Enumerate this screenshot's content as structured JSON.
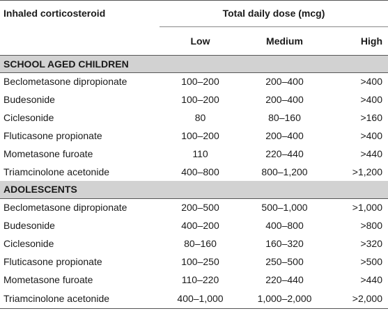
{
  "header": {
    "corticosteroid_label": "Inhaled corticosteroid",
    "total_label": "Total daily dose (mcg)",
    "low_label": "Low",
    "medium_label": "Medium",
    "high_label": "High"
  },
  "sections": [
    {
      "title": "SCHOOL AGED CHILDREN",
      "rows": [
        {
          "drug": "Beclometasone dipropionate",
          "low": "100–200",
          "medium": "200–400",
          "high": ">400"
        },
        {
          "drug": "Budesonide",
          "low": "100–200",
          "medium": "200–400",
          "high": ">400"
        },
        {
          "drug": "Ciclesonide",
          "low": "80",
          "medium": "80–160",
          "high": ">160"
        },
        {
          "drug": "Fluticasone propionate",
          "low": "100–200",
          "medium": "200–400",
          "high": ">400"
        },
        {
          "drug": "Mometasone furoate",
          "low": "110",
          "medium": "220–440",
          "high": ">440"
        },
        {
          "drug": "Triamcinolone acetonide",
          "low": "400–800",
          "medium": "800–1,200",
          "high": ">1,200"
        }
      ]
    },
    {
      "title": "ADOLESCENTS",
      "rows": [
        {
          "drug": "Beclometasone dipropionate",
          "low": "200–500",
          "medium": "500–1,000",
          "high": ">1,000"
        },
        {
          "drug": "Budesonide",
          "low": "400–200",
          "medium": "400–800",
          "high": ">800"
        },
        {
          "drug": "Ciclesonide",
          "low": "80–160",
          "medium": "160–320",
          "high": ">320"
        },
        {
          "drug": "Fluticasone propionate",
          "low": "100–250",
          "medium": "250–500",
          "high": ">500"
        },
        {
          "drug": "Mometasone furoate",
          "low": "110–220",
          "medium": "220–440",
          "high": ">440"
        },
        {
          "drug": "Triamcinolone acetonide",
          "low": "400–1,000",
          "medium": "1,000–2,000",
          "high": ">2,000"
        }
      ]
    }
  ]
}
